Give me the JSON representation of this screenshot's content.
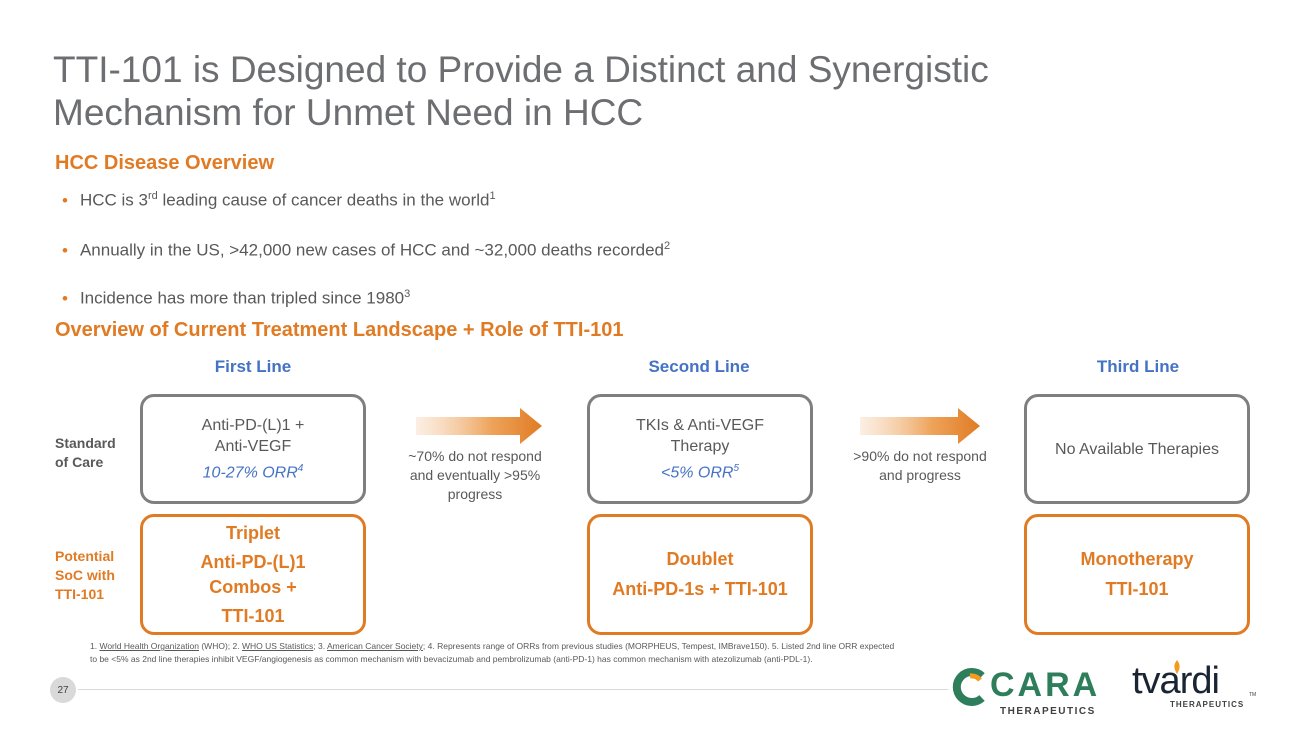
{
  "slide": {
    "title_line1": "TTI-101 is Designed to Provide a Distinct and Synergistic",
    "title_line2": "Mechanism for Unmet Need in HCC",
    "page_number": "27"
  },
  "overview": {
    "heading": "HCC Disease Overview",
    "bullets": [
      {
        "pre": "HCC is 3",
        "sup_mid": "rd",
        "post": " leading cause of cancer deaths in the world",
        "ref": "1"
      },
      {
        "pre": "Annually in the US, >42,000 new cases of HCC and ~32,000 deaths recorded",
        "sup_mid": "",
        "post": "",
        "ref": "2"
      },
      {
        "pre": "Incidence has more than tripled since 1980",
        "sup_mid": "",
        "post": "",
        "ref": "3"
      }
    ]
  },
  "landscape": {
    "heading": "Overview of Current Treatment Landscape + Role of TTI-101",
    "columns": [
      "First Line",
      "Second Line",
      "Third Line"
    ],
    "row_labels": {
      "standard": [
        "Standard",
        "of Care"
      ],
      "potential": [
        "Potential",
        "SoC with",
        "TTI-101"
      ]
    },
    "standard_boxes": [
      {
        "lines": [
          "Anti-PD-(L)1 +",
          "Anti-VEGF"
        ],
        "orr": "10-27% ORR",
        "ref": "4"
      },
      {
        "lines": [
          "TKIs & Anti-VEGF",
          "Therapy"
        ],
        "orr": "<5% ORR",
        "ref": "5"
      },
      {
        "lines": [
          "No Available Therapies"
        ],
        "orr": "",
        "ref": ""
      }
    ],
    "arrow_notes": [
      [
        "~70% do not respond",
        "and eventually >95%",
        "progress"
      ],
      [
        ">90% do not respond",
        "and progress"
      ]
    ],
    "potential_boxes": [
      {
        "lines": [
          "Triplet",
          "Anti-PD-(L)1",
          "Combos +",
          "TTI-101"
        ]
      },
      {
        "lines": [
          "Doublet",
          "Anti-PD-1s + TTI-101"
        ]
      },
      {
        "lines": [
          "Monotherapy",
          "TTI-101"
        ]
      }
    ]
  },
  "footnote": {
    "p1": "1. ",
    "l1": "World Health Organization",
    "p2": " (WHO); 2. ",
    "l2": "WHO US Statistics",
    "p3": "; 3. ",
    "l3": "American Cancer Society",
    "p4": "; 4. Represents range of ORRs from previous studies (MORPHEUS, Tempest, IMBrave150). 5. Listed 2nd line ORR expected",
    "line2": "to be <5% as 2nd line therapies inhibit VEGF/angiogenesis as common mechanism with bevacizumab and pembrolizumab (anti-PD-1) has common mechanism with atezolizumab (anti-PDL-1)."
  },
  "logos": {
    "cara_name": "CARA",
    "cara_sub": "THERAPEUTICS",
    "tvardi_name": "tvardi",
    "tvardi_sub": "THERAPEUTICS",
    "tvardi_tm": "TM"
  },
  "colors": {
    "accent_orange": "#e07b24",
    "accent_blue": "#4472c4",
    "cara_green": "#2e7d5b",
    "cara_orange": "#f29b1f",
    "tvardi_dark": "#1a2533"
  }
}
